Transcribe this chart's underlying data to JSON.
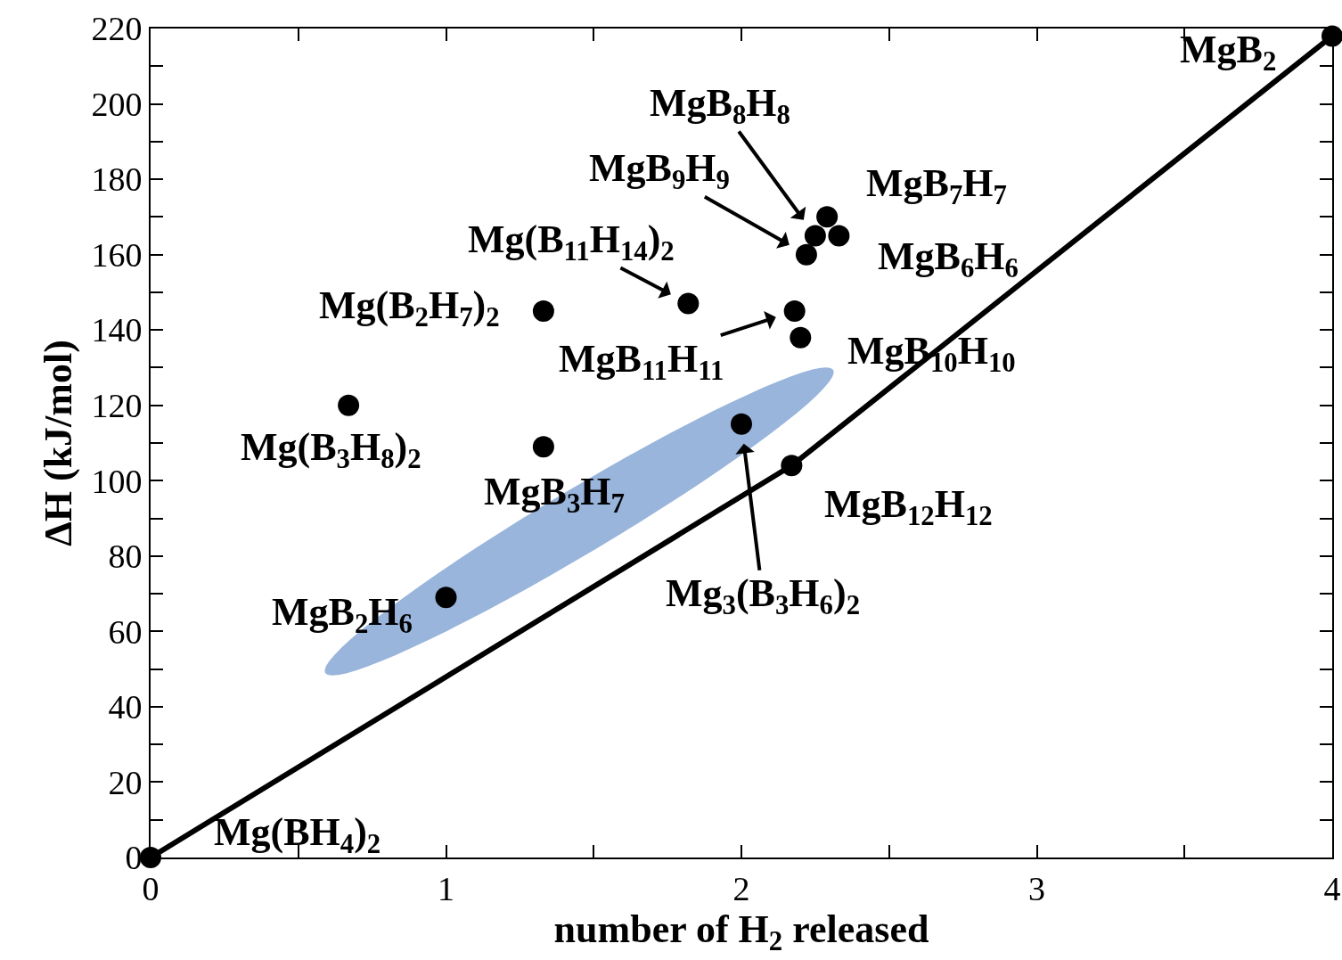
{
  "chart_data": {
    "type": "scatter",
    "xlabel": "number of H$_{2}$ released",
    "ylabel": "ΔH (kJ/mol)",
    "xlim": [
      0,
      4
    ],
    "ylim": [
      0,
      220
    ],
    "xticks": [
      0,
      {
        "value": 0.5,
        "label": null
      },
      1,
      {
        "value": 1.5,
        "label": null
      },
      2,
      {
        "value": 2.5,
        "label": null
      },
      3,
      {
        "value": 3.5,
        "label": null
      },
      4
    ],
    "yticks": [
      0,
      {
        "value": 10,
        "label": null
      },
      20,
      {
        "value": 30,
        "label": null
      },
      40,
      {
        "value": 50,
        "label": null
      },
      60,
      {
        "value": 70,
        "label": null
      },
      80,
      {
        "value": 90,
        "label": null
      },
      100,
      {
        "value": 110,
        "label": null
      },
      120,
      {
        "value": 130,
        "label": null
      },
      140,
      {
        "value": 150,
        "label": null
      },
      160,
      {
        "value": 170,
        "label": null
      },
      180,
      {
        "value": 190,
        "label": null
      },
      200,
      {
        "value": 210,
        "label": null
      },
      220
    ],
    "grid": false,
    "marker": "circle",
    "series": [
      {
        "type": "line",
        "marker": "none",
        "color": "#000000",
        "x": [
          0,
          2.17,
          4
        ],
        "values": [
          0,
          104,
          218
        ]
      },
      {
        "type": "scatter",
        "color": "#000000",
        "x": [
          0,
          4,
          2.17,
          0.67,
          1.33,
          1.33,
          1.0,
          2.0,
          1.82,
          2.18,
          2.2,
          2.22,
          2.25,
          2.29,
          2.33
        ],
        "values": [
          0,
          218,
          104,
          120,
          109,
          145,
          69,
          115,
          147,
          145,
          138,
          160,
          165,
          170,
          165
        ]
      }
    ],
    "annotations": [
      {
        "text": "Mg(BH$_{4}$)$_{2}$",
        "x": 0,
        "y": 0
      },
      {
        "text": "MgB$_{2}$",
        "x": 4,
        "y": 218
      },
      {
        "text": "MgB$_{12}$H$_{12}$",
        "x": 2.17,
        "y": 104
      },
      {
        "text": "Mg(B$_{3}$H$_{8}$)$_{2}$",
        "x": 0.67,
        "y": 120
      },
      {
        "text": "MgB$_{3}$H$_{7}$",
        "x": 1.33,
        "y": 109
      },
      {
        "text": "Mg(B$_{2}$H$_{7}$)$_{2}$",
        "x": 1.33,
        "y": 145
      },
      {
        "text": "MgB$_{2}$H$_{6}$",
        "x": 1.0,
        "y": 69
      },
      {
        "text": "Mg$_{3}$(B$_{3}$H$_{6}$)$_{2}$",
        "x": 2.0,
        "y": 115
      },
      {
        "text": "Mg(B$_{11}$H$_{14}$)$_{2}$",
        "x": 1.82,
        "y": 147
      },
      {
        "text": "MgB$_{11}$H$_{11}$",
        "x": 2.18,
        "y": 145
      },
      {
        "text": "MgB$_{10}$H$_{10}$",
        "x": 2.2,
        "y": 138
      },
      {
        "text": "MgB$_{9}$H$_{9}$",
        "x": 2.22,
        "y": 160
      },
      {
        "text": "MgB$_{8}$H$_{8}$",
        "x": 2.25,
        "y": 165
      },
      {
        "text": "MgB$_{7}$H$_{7}$",
        "x": 2.29,
        "y": 170
      },
      {
        "text": "MgB$_{6}$H$_{6}$",
        "x": 2.33,
        "y": 165
      }
    ]
  }
}
